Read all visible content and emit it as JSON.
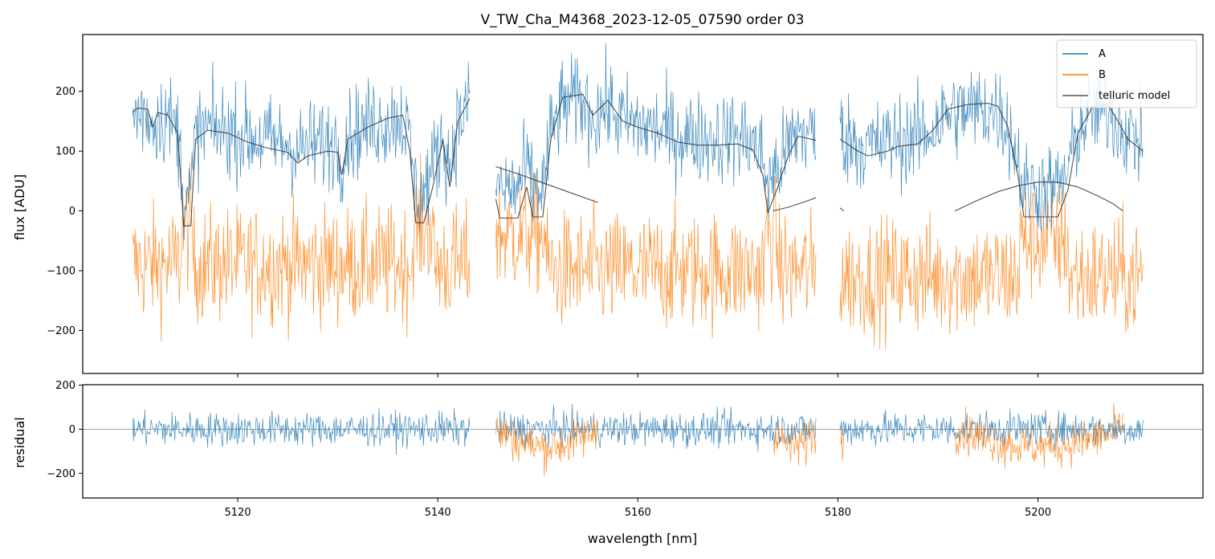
{
  "chart_data": [
    {
      "type": "line",
      "panel": "top",
      "title": "V_TW_Cha_M4368_2023-12-05_07590  order 03",
      "xlabel": "",
      "ylabel": "flux [ADU]",
      "xlim": [
        5104.5,
        5216.5
      ],
      "ylim": [
        -272,
        295
      ],
      "yticks": [
        -200,
        -100,
        0,
        100,
        200
      ],
      "ytick_labels": [
        "−200",
        "−100",
        "0",
        "100",
        "200"
      ],
      "legend_position": "top-right",
      "segments": [
        [
          5109.5,
          5143.2
        ],
        [
          5145.8,
          5177.8
        ],
        [
          5180.2,
          5210.5
        ]
      ],
      "series": [
        {
          "name": "A",
          "color": "#1f77b4",
          "baseline_per_segment": [
            125,
            130,
            125
          ],
          "noise": 55
        },
        {
          "name": "B",
          "color": "#ff7f0e",
          "baseline_per_segment": [
            -90,
            -100,
            -110
          ],
          "noise": 70
        },
        {
          "name": "telluric model",
          "color": "#333333",
          "points": [
            [
              5109.5,
              165
            ],
            [
              5110.0,
              172
            ],
            [
              5111.0,
              170
            ],
            [
              5111.5,
              140
            ],
            [
              5112.0,
              165
            ],
            [
              5113.0,
              160
            ],
            [
              5114.0,
              130
            ],
            [
              5114.6,
              -25
            ],
            [
              5115.3,
              -25
            ],
            [
              5115.8,
              120
            ],
            [
              5117.0,
              135
            ],
            [
              5119.0,
              130
            ],
            [
              5121.0,
              115
            ],
            [
              5123.0,
              105
            ],
            [
              5125.0,
              98
            ],
            [
              5126.0,
              80
            ],
            [
              5127.0,
              92
            ],
            [
              5129.0,
              100
            ],
            [
              5130.0,
              98
            ],
            [
              5130.4,
              60
            ],
            [
              5131.0,
              120
            ],
            [
              5133.0,
              140
            ],
            [
              5135.0,
              155
            ],
            [
              5136.5,
              160
            ],
            [
              5137.2,
              100
            ],
            [
              5137.8,
              -20
            ],
            [
              5138.6,
              -20
            ],
            [
              5139.5,
              40
            ],
            [
              5140.5,
              118
            ],
            [
              5141.2,
              40
            ],
            [
              5142.0,
              150
            ],
            [
              5143.2,
              188
            ]
          ]
        },
        {
          "name": "telluric model",
          "color": "#333333",
          "points": [
            [
              5145.8,
              20
            ],
            [
              5146.2,
              -12
            ],
            [
              5148.0,
              -12
            ],
            [
              5148.9,
              40
            ],
            [
              5149.5,
              -10
            ],
            [
              5150.5,
              -10
            ],
            [
              5151.3,
              120
            ],
            [
              5152.5,
              190
            ],
            [
              5154.5,
              195
            ],
            [
              5155.5,
              160
            ],
            [
              5157.0,
              185
            ],
            [
              5158.5,
              150
            ],
            [
              5160.0,
              140
            ],
            [
              5162.0,
              130
            ],
            [
              5164.0,
              115
            ],
            [
              5166.0,
              110
            ],
            [
              5168.0,
              110
            ],
            [
              5170.0,
              112
            ],
            [
              5171.5,
              102
            ],
            [
              5172.5,
              60
            ],
            [
              5173.0,
              -3
            ],
            [
              5174.0,
              40
            ],
            [
              5175.0,
              90
            ],
            [
              5176.0,
              125
            ],
            [
              5177.8,
              118
            ]
          ]
        },
        {
          "name": "telluric model",
          "color": "#333333",
          "points": [
            [
              5180.2,
              120
            ],
            [
              5182.0,
              100
            ],
            [
              5183.0,
              92
            ],
            [
              5185.0,
              100
            ],
            [
              5186.0,
              108
            ],
            [
              5188.0,
              112
            ],
            [
              5189.5,
              135
            ],
            [
              5191.0,
              170
            ],
            [
              5193.0,
              178
            ],
            [
              5195.0,
              180
            ],
            [
              5196.0,
              175
            ],
            [
              5197.0,
              140
            ],
            [
              5198.0,
              60
            ],
            [
              5198.6,
              -10
            ],
            [
              5202.0,
              -10
            ],
            [
              5203.0,
              35
            ],
            [
              5204.0,
              130
            ],
            [
              5205.5,
              175
            ],
            [
              5207.0,
              178
            ],
            [
              5208.0,
              150
            ],
            [
              5209.0,
              120
            ],
            [
              5210.5,
              100
            ]
          ]
        },
        {
          "name": "telluric model",
          "color": "#333333",
          "points": [
            [
              5145.8,
              74
            ],
            [
              5148.0,
              62
            ],
            [
              5150.0,
              50
            ],
            [
              5152.0,
              38
            ],
            [
              5154.0,
              26
            ],
            [
              5156.0,
              14
            ]
          ]
        },
        {
          "name": "telluric model",
          "color": "#333333",
          "points": [
            [
              5173.5,
              0
            ],
            [
              5175.0,
              6
            ],
            [
              5176.5,
              14
            ],
            [
              5177.8,
              22
            ]
          ]
        },
        {
          "name": "telluric model",
          "color": "#333333",
          "points": [
            [
              5180.2,
              5
            ],
            [
              5180.6,
              0
            ]
          ]
        },
        {
          "name": "telluric model",
          "color": "#333333",
          "points": [
            [
              5191.7,
              0
            ],
            [
              5194.0,
              18
            ],
            [
              5196.0,
              32
            ],
            [
              5198.0,
              42
            ],
            [
              5200.0,
              48
            ],
            [
              5202.0,
              48
            ],
            [
              5204.0,
              40
            ],
            [
              5206.0,
              25
            ],
            [
              5207.5,
              12
            ],
            [
              5208.5,
              0
            ]
          ]
        }
      ],
      "legend": [
        "A",
        "B",
        "telluric model"
      ]
    },
    {
      "type": "line",
      "panel": "bottom",
      "xlabel": "wavelength [nm]",
      "ylabel": "residual",
      "xlim": [
        5104.5,
        5216.5
      ],
      "ylim": [
        -312,
        202
      ],
      "xticks": [
        5120,
        5140,
        5160,
        5180,
        5200
      ],
      "xtick_labels": [
        "5120",
        "5140",
        "5160",
        "5180",
        "5200"
      ],
      "yticks": [
        -200,
        0,
        200
      ],
      "ytick_labels": [
        "−200",
        "0",
        "200"
      ],
      "reference_line": 0,
      "series": [
        {
          "name": "A",
          "color": "#1f77b4",
          "noise": 55
        },
        {
          "name": "B",
          "color": "#ff7f0e",
          "noise": 70,
          "ranges": [
            [
              5145.8,
              5156.0
            ],
            [
              5173.5,
              5177.8
            ],
            [
              5180.2,
              5180.6
            ],
            [
              5191.7,
              5208.5
            ]
          ]
        }
      ]
    }
  ],
  "legend_items": [
    "A",
    "B",
    "telluric model"
  ],
  "colors": {
    "A": "#1f77b4",
    "B": "#ff7f0e",
    "telluric": "#333333"
  }
}
